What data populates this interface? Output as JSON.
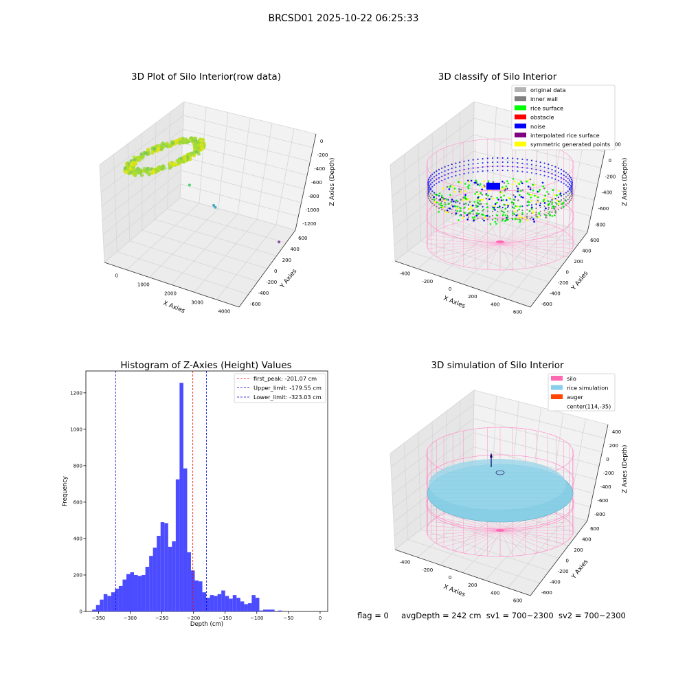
{
  "suptitle": "BRCSD01 2025-10-22 06:25:33",
  "status": {
    "flag": "flag = 0",
    "avg": "avgDepth = 242 cm",
    "sv1": "sv1 = 700~2300",
    "sv2": "sv2 = 700~2300"
  },
  "chart_data": [
    {
      "type": "scatter",
      "projection": "3d",
      "title": "3D Plot of Silo Interior(row data)",
      "xlabel": "X Axies",
      "ylabel": "Y Axies",
      "zlabel": "Z Axies (Depth)",
      "xticks": [
        "0",
        "1000",
        "2000",
        "3000",
        "4000"
      ],
      "yticks": [
        "-600",
        "-400",
        "-200",
        "0",
        "200",
        "400",
        "600"
      ],
      "zticks": [
        "-1200",
        "-1000",
        "-800",
        "-600",
        "-400",
        "-200",
        "0"
      ],
      "xlim": [
        -500,
        4300
      ],
      "ylim": [
        -700,
        650
      ],
      "zlim": [
        -1350,
        80
      ],
      "grid": true,
      "clusters": [
        {
          "shape": "ring",
          "cx": 0,
          "cy": 0,
          "cz": -160,
          "rx": 650,
          "ry": 650,
          "rz": 60,
          "color": "#b5e02a"
        },
        {
          "shape": "point",
          "x": 820,
          "y": 120,
          "z": -600,
          "color": "#45d46a"
        },
        {
          "shape": "point",
          "x": 1700,
          "y": 120,
          "z": -780,
          "color": "#4aa8c0"
        },
        {
          "shape": "point",
          "x": 1760,
          "y": 120,
          "z": -800,
          "color": "#4aa8c0"
        },
        {
          "shape": "point",
          "x": 4050,
          "y": 120,
          "z": -1000,
          "color": "#8a4aa0"
        }
      ]
    },
    {
      "type": "scatter",
      "projection": "3d",
      "title": "3D classify of Silo Interior",
      "xlabel": "X Axies",
      "ylabel": "Y Axies",
      "zlabel": "Z Axies (Depth)",
      "xticks": [
        "-400",
        "-200",
        "0",
        "200",
        "400",
        "600"
      ],
      "yticks": [
        "-600",
        "-400",
        "-200",
        "0",
        "200",
        "400",
        "600"
      ],
      "zticks": [
        "-800",
        "-600",
        "-400",
        "-200",
        "0",
        "200"
      ],
      "xlim": [
        -560,
        760
      ],
      "ylim": [
        -660,
        660
      ],
      "zlim": [
        -950,
        360
      ],
      "grid": true,
      "legend_position": "top-right",
      "legend": [
        {
          "label": "original data",
          "color": "#b4b4b4"
        },
        {
          "label": "inner wall",
          "color": "#808080"
        },
        {
          "label": "rice surface",
          "color": "#00ff00"
        },
        {
          "label": "obstacle",
          "color": "#ff0000"
        },
        {
          "label": "noise",
          "color": "#0000ff"
        },
        {
          "label": "interpolated rice surface",
          "color": "#800080"
        },
        {
          "label": "symmetric generated points",
          "color": "#ffff00"
        }
      ],
      "silo": {
        "cx": 114,
        "cy": -35,
        "r": 650,
        "z_bottom": -940,
        "z_top": 0
      },
      "rice_level_z": -200
    },
    {
      "type": "bar",
      "title": "Histogram of Z-Axies (Height) Values",
      "xlabel": "Depth (cm)",
      "ylabel": "Frequency",
      "xlim": [
        -370,
        12
      ],
      "ylim": [
        0,
        1320
      ],
      "xticks": [
        -350,
        -300,
        -250,
        -200,
        -150,
        -100,
        -50,
        0
      ],
      "xtick_labels": [
        "−350",
        "−300",
        "−250",
        "−200",
        "−150",
        "−100",
        "−50",
        "0"
      ],
      "yticks": [
        0,
        200,
        400,
        600,
        800,
        1000,
        1200
      ],
      "yticks_labels": [
        "0",
        "200",
        "400",
        "600",
        "800",
        "1000",
        "1200"
      ],
      "bin_start": -360,
      "bin_width": 6,
      "values": [
        10,
        35,
        65,
        95,
        85,
        105,
        125,
        140,
        175,
        205,
        215,
        200,
        195,
        200,
        245,
        305,
        350,
        415,
        490,
        485,
        355,
        385,
        725,
        1255,
        785,
        325,
        225,
        170,
        165,
        105,
        75,
        90,
        85,
        95,
        115,
        85,
        70,
        90,
        75,
        55,
        40,
        45,
        90,
        75,
        5,
        10,
        10,
        10,
        0,
        5
      ],
      "color": "#4b4bff",
      "lines": [
        {
          "x": -201.07,
          "color": "#ff0000",
          "label": "first_peak: -201.07 cm"
        },
        {
          "x": -179.55,
          "color": "#0000cc",
          "label": "Upper_limit: -179.55 cm"
        },
        {
          "x": -323.03,
          "color": "#0000cc",
          "label": "Lower_limit: -323.03 cm"
        }
      ],
      "legend_position": "top-right"
    },
    {
      "type": "scatter",
      "projection": "3d",
      "title": "3D simulation of Silo Interior",
      "xlabel": "X Axies",
      "ylabel": "Y Axies",
      "zlabel": "Z Axies (Depth)",
      "xticks": [
        "-400",
        "-200",
        "0",
        "200",
        "400",
        "600"
      ],
      "yticks": [
        "-600",
        "-400",
        "-200",
        "0",
        "200",
        "400",
        "600"
      ],
      "zticks": [
        "-800",
        "-600",
        "-400",
        "-200",
        "0",
        "200",
        "400"
      ],
      "xlim": [
        -560,
        760
      ],
      "ylim": [
        -660,
        660
      ],
      "zlim": [
        -950,
        500
      ],
      "grid": true,
      "legend_position": "top-right",
      "legend": [
        {
          "label": "silo",
          "color": "#ff69b4"
        },
        {
          "label": "rice simulation",
          "color": "#87ceeb"
        },
        {
          "label": "auger",
          "color": "#ff4500"
        },
        {
          "label": "center(114,-35)",
          "color": ""
        }
      ],
      "silo": {
        "cx": 114,
        "cy": -35,
        "r": 650,
        "z_bottom": -940,
        "z_top": 0
      },
      "rice_level_z": -242
    }
  ]
}
